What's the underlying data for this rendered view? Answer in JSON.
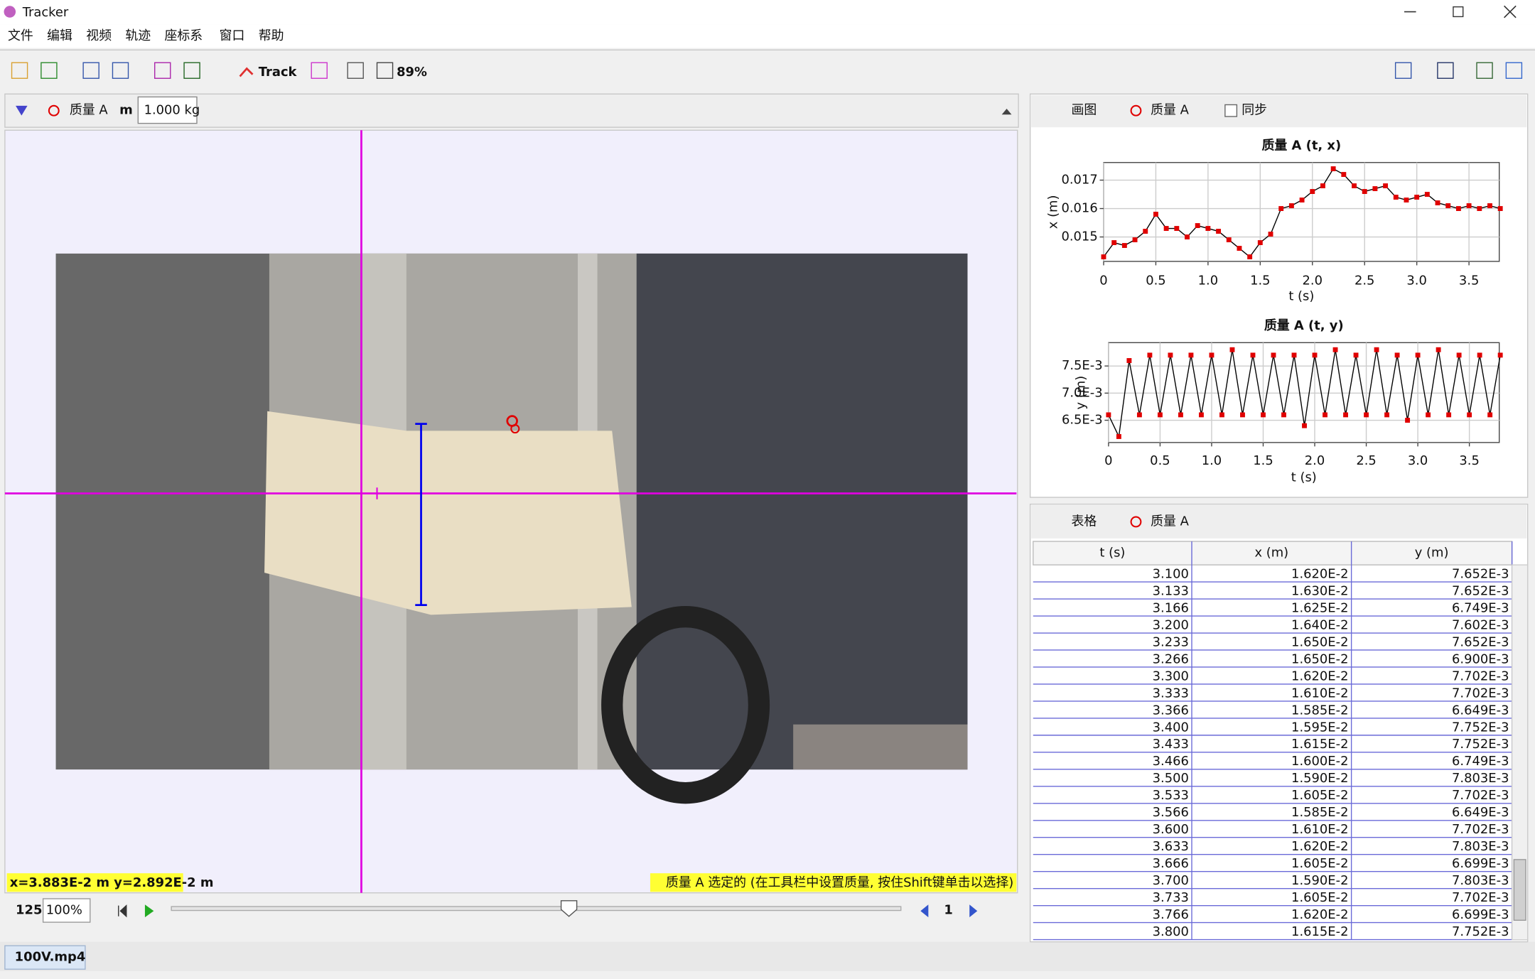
{
  "window": {
    "title": "Tracker"
  },
  "menu": [
    "文件",
    "编辑",
    "视频",
    "轨迹",
    "座标系",
    "窗口",
    "帮助"
  ],
  "toolbar": {
    "track": "Track",
    "zoom": "89%"
  },
  "track_bar": {
    "track_name": "质量 A",
    "mass_label": "m",
    "mass_value": "1.000 kg"
  },
  "video": {
    "coords": "x=3.883E-2 m  y=2.892E-2 m",
    "message": "质量 A 选定的 (在工具栏中设置质量, 按住Shift键单击以选择)"
  },
  "player": {
    "frame": "125",
    "rate": "100%",
    "step": "1"
  },
  "tab": "100V.mp4",
  "plot_panel": {
    "menu": "画图",
    "track": "质量 A",
    "sync": "同步"
  },
  "chart_data": [
    {
      "type": "line",
      "title": "质量 A (t, x)",
      "xlabel": "t (s)",
      "ylabel": "x (m)",
      "color": "#e00000",
      "line_color": "#000000",
      "grid": true,
      "x": [
        0,
        0.1,
        0.2,
        0.3,
        0.4,
        0.5,
        0.6,
        0.7,
        0.8,
        0.9,
        1.0,
        1.1,
        1.2,
        1.3,
        1.4,
        1.5,
        1.6,
        1.7,
        1.8,
        1.9,
        2.0,
        2.1,
        2.2,
        2.3,
        2.4,
        2.5,
        2.6,
        2.7,
        2.8,
        2.9,
        3.0,
        3.1,
        3.2,
        3.3,
        3.4,
        3.5,
        3.6,
        3.7,
        3.8
      ],
      "values": [
        0.0143,
        0.0148,
        0.0147,
        0.0149,
        0.0152,
        0.0158,
        0.0153,
        0.0153,
        0.015,
        0.0154,
        0.0153,
        0.0152,
        0.0149,
        0.0146,
        0.0143,
        0.0148,
        0.0151,
        0.016,
        0.0161,
        0.0163,
        0.0166,
        0.0168,
        0.0174,
        0.0172,
        0.0168,
        0.0166,
        0.0167,
        0.0168,
        0.0164,
        0.0163,
        0.0164,
        0.0165,
        0.0162,
        0.0161,
        0.016,
        0.0161,
        0.016,
        0.0161,
        0.016
      ],
      "xlim": [
        0,
        3.79
      ],
      "ylim": [
        0.01414,
        0.01762
      ],
      "xticks": [
        0,
        0.5,
        {
          "value": 1,
          "label": "1.0"
        },
        1.5,
        {
          "value": 2,
          "label": "2.0"
        },
        2.5,
        {
          "value": 3,
          "label": "3.0"
        },
        3.5
      ],
      "yticks": [
        0.015,
        0.016,
        0.017
      ]
    },
    {
      "type": "line",
      "title": "质量 A (t, y)",
      "xlabel": "t (s)",
      "ylabel": "y (m)",
      "color": "#e00000",
      "line_color": "#000000",
      "grid": true,
      "x": [
        0,
        0.1,
        0.2,
        0.3,
        0.4,
        0.5,
        0.6,
        0.7,
        0.8,
        0.9,
        1.0,
        1.1,
        1.2,
        1.3,
        1.4,
        1.5,
        1.6,
        1.7,
        1.8,
        1.9,
        2.0,
        2.1,
        2.2,
        2.3,
        2.4,
        2.5,
        2.6,
        2.7,
        2.8,
        2.9,
        3.0,
        3.1,
        3.2,
        3.3,
        3.4,
        3.5,
        3.6,
        3.7,
        3.8
      ],
      "values": [
        0.0066,
        0.0062,
        0.0076,
        0.0066,
        0.0077,
        0.0066,
        0.0077,
        0.0066,
        0.0077,
        0.0066,
        0.0077,
        0.0066,
        0.0078,
        0.0066,
        0.0077,
        0.0066,
        0.0077,
        0.0066,
        0.0077,
        0.0064,
        0.0077,
        0.0066,
        0.0078,
        0.0066,
        0.0077,
        0.0066,
        0.0078,
        0.0066,
        0.0077,
        0.0065,
        0.0077,
        0.0066,
        0.0078,
        0.0066,
        0.0077,
        0.0066,
        0.0077,
        0.0066,
        0.0077
      ],
      "xlim": [
        0,
        3.79
      ],
      "ylim": [
        0.00609,
        0.00793
      ],
      "xticks": [
        0,
        0.5,
        {
          "value": 1,
          "label": "1.0"
        },
        1.5,
        {
          "value": 2,
          "label": "2.0"
        },
        2.5,
        {
          "value": 3,
          "label": "3.0"
        },
        3.5
      ],
      "yticks": [
        {
          "value": 0.0065,
          "label": "6.5E-3"
        },
        {
          "value": 0.007,
          "label": "7.0E-3"
        },
        {
          "value": 0.0075,
          "label": "7.5E-3"
        }
      ]
    }
  ],
  "table_panel": {
    "menu": "表格",
    "track": "质量 A"
  },
  "table": {
    "columns": [
      "t (s)",
      "x (m)",
      "y (m)"
    ],
    "rows": [
      [
        "3.100",
        "1.620E-2",
        "7.652E-3"
      ],
      [
        "3.133",
        "1.630E-2",
        "7.652E-3"
      ],
      [
        "3.166",
        "1.625E-2",
        "6.749E-3"
      ],
      [
        "3.200",
        "1.640E-2",
        "7.602E-3"
      ],
      [
        "3.233",
        "1.650E-2",
        "7.652E-3"
      ],
      [
        "3.266",
        "1.650E-2",
        "6.900E-3"
      ],
      [
        "3.300",
        "1.620E-2",
        "7.702E-3"
      ],
      [
        "3.333",
        "1.610E-2",
        "7.702E-3"
      ],
      [
        "3.366",
        "1.585E-2",
        "6.649E-3"
      ],
      [
        "3.400",
        "1.595E-2",
        "7.752E-3"
      ],
      [
        "3.433",
        "1.615E-2",
        "7.752E-3"
      ],
      [
        "3.466",
        "1.600E-2",
        "6.749E-3"
      ],
      [
        "3.500",
        "1.590E-2",
        "7.803E-3"
      ],
      [
        "3.533",
        "1.605E-2",
        "7.702E-3"
      ],
      [
        "3.566",
        "1.585E-2",
        "6.649E-3"
      ],
      [
        "3.600",
        "1.610E-2",
        "7.702E-3"
      ],
      [
        "3.633",
        "1.620E-2",
        "7.803E-3"
      ],
      [
        "3.666",
        "1.605E-2",
        "6.699E-3"
      ],
      [
        "3.700",
        "1.590E-2",
        "7.803E-3"
      ],
      [
        "3.733",
        "1.605E-2",
        "7.702E-3"
      ],
      [
        "3.766",
        "1.620E-2",
        "6.699E-3"
      ],
      [
        "3.800",
        "1.615E-2",
        "7.752E-3"
      ]
    ]
  }
}
